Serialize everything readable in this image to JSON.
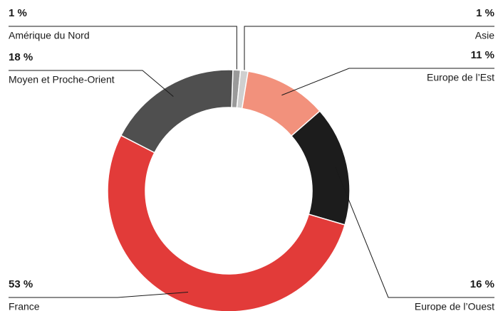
{
  "chart_data": {
    "type": "donut",
    "categories": [
      "Amérique du Nord",
      "Asie",
      "Europe de l’Est",
      "Europe de l’Ouest",
      "France",
      "Moyen et Proche-Orient"
    ],
    "values": [
      1,
      1,
      11,
      16,
      53,
      18
    ],
    "value_labels": [
      "1 %",
      "1 %",
      "11 %",
      "16 %",
      "53 %",
      "18 %"
    ],
    "colors": [
      "#9a9a9a",
      "#cfcfcf",
      "#f2917c",
      "#1c1c1c",
      "#e23b39",
      "#4f4f4f"
    ]
  }
}
